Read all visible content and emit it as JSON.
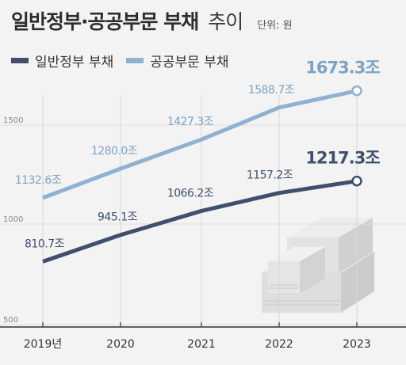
{
  "title": {
    "main": "일반정부·공공부문 부채",
    "suffix": "추이",
    "unit": "단위: 원"
  },
  "legend": [
    {
      "label": "일반정부 부채",
      "color": "#3f4f6c"
    },
    {
      "label": "공공부문 부채",
      "color": "#8fb2d0"
    }
  ],
  "chart_data": {
    "type": "line",
    "categories": [
      "2019년",
      "2020",
      "2021",
      "2022",
      "2023"
    ],
    "ylim": [
      500,
      1700
    ],
    "yticks": [
      "500",
      "1000",
      "1500"
    ],
    "series": [
      {
        "name": "공공부문 부채",
        "color": "#8fb2d0",
        "values": [
          1132.6,
          1280.0,
          1427.3,
          1588.7,
          1673.3
        ],
        "labels": [
          "1132.6조",
          "1280.0조",
          "1427.3조",
          "1588.7조",
          "1673.3조"
        ]
      },
      {
        "name": "일반정부 부채",
        "color": "#3f4f6c",
        "values": [
          810.7,
          945.1,
          1066.2,
          1157.2,
          1217.3
        ],
        "labels": [
          "810.7조",
          "945.1조",
          "1066.2조",
          "1157.2조",
          "1217.3조"
        ]
      }
    ]
  }
}
